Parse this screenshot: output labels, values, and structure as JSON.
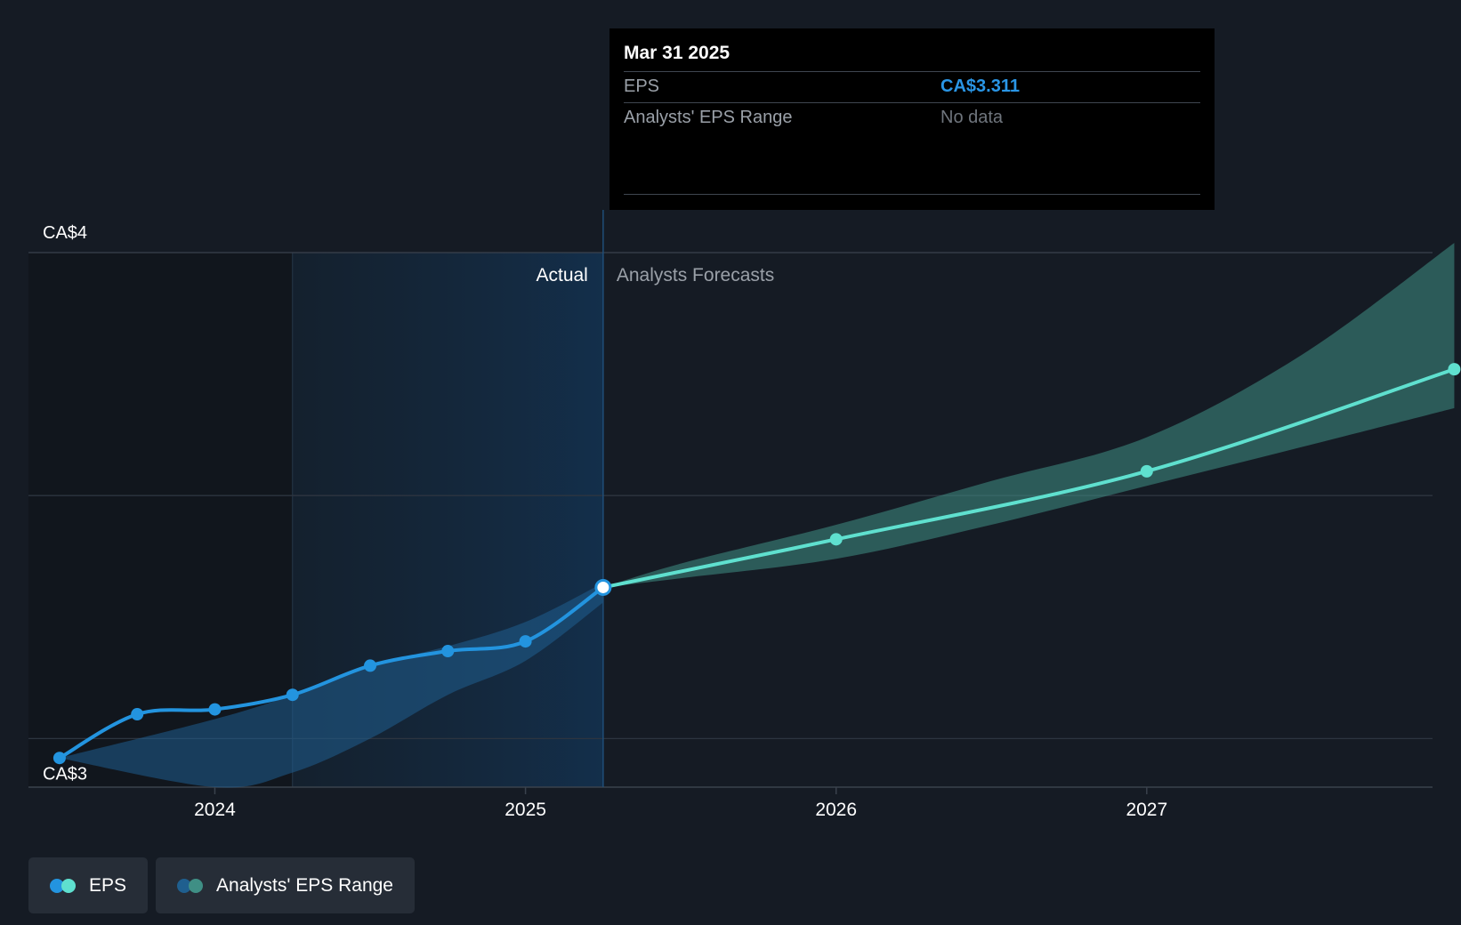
{
  "tooltip": {
    "date": "Mar 31 2025",
    "rows": [
      {
        "label": "EPS",
        "value": "CA$3.311"
      },
      {
        "label": "Analysts' EPS Range",
        "value": "No data"
      }
    ]
  },
  "regions": {
    "actual_label": "Actual",
    "forecast_label": "Analysts Forecasts"
  },
  "legend": [
    {
      "label": "EPS",
      "colors": [
        "#2394df",
        "#5fe0cf"
      ]
    },
    {
      "label": "Analysts' EPS Range",
      "colors": [
        "#1f5f8f",
        "#3f8f85"
      ]
    }
  ],
  "colors": {
    "background": "#151b24",
    "actual_line": "#2394df",
    "forecast_line": "#5fe0cf",
    "actual_range": "#1f5f8f",
    "forecast_range": "#3f8f85",
    "grid": "#2d3540"
  },
  "chart_data": {
    "type": "line",
    "y_tick_labels": [
      {
        "value": 4,
        "label": "CA$4"
      },
      {
        "value": 3,
        "label": "CA$3"
      }
    ],
    "ylim": [
      2.9,
      4.0
    ],
    "xlim": [
      2023.4,
      2027.92
    ],
    "x_ticks": [
      2024,
      2025,
      2026,
      2027
    ],
    "x_tick_labels": [
      "2024",
      "2025",
      "2026",
      "2027"
    ],
    "grid": true,
    "highlight_start": 2024.25,
    "divider": 2025.25,
    "series": [
      {
        "name": "EPS",
        "kind": "actual",
        "x": [
          2023.5,
          2023.75,
          2024.0,
          2024.25,
          2024.5,
          2024.75,
          2025.0,
          2025.25
        ],
        "y": [
          2.96,
          3.05,
          3.06,
          3.09,
          3.15,
          3.18,
          3.2,
          3.311
        ]
      },
      {
        "name": "EPS",
        "kind": "forecast",
        "x": [
          2025.25,
          2026.0,
          2027.0,
          2027.99
        ],
        "y": [
          3.311,
          3.41,
          3.55,
          3.76
        ]
      }
    ],
    "ranges": [
      {
        "kind": "actual",
        "x": [
          2023.5,
          2024.0,
          2024.25,
          2024.5,
          2024.75,
          2025.0,
          2025.25
        ],
        "low": [
          2.96,
          2.9,
          2.93,
          3.0,
          3.09,
          3.16,
          3.28
        ],
        "high": [
          2.96,
          3.04,
          3.09,
          3.15,
          3.19,
          3.24,
          3.32
        ]
      },
      {
        "kind": "forecast",
        "x": [
          2025.25,
          2025.5,
          2026.0,
          2026.5,
          2027.0,
          2027.5,
          2027.99
        ],
        "low": [
          3.311,
          3.33,
          3.37,
          3.44,
          3.52,
          3.6,
          3.68
        ],
        "high": [
          3.311,
          3.36,
          3.44,
          3.53,
          3.62,
          3.79,
          4.02
        ]
      }
    ]
  }
}
